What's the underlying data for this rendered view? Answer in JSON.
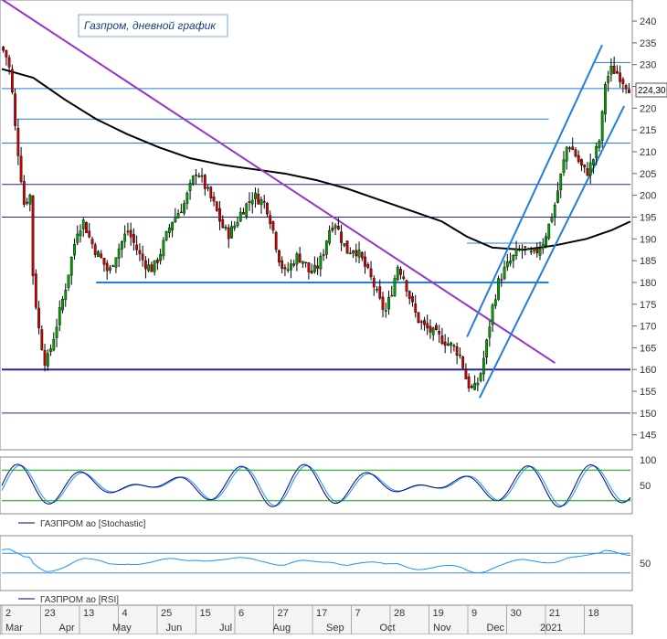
{
  "chart_data": [
    {
      "type": "candlestick",
      "title": "Газпром, дневной график",
      "y_ticks": [
        145,
        150,
        155,
        160,
        165,
        170,
        175,
        180,
        185,
        190,
        195,
        200,
        205,
        210,
        215,
        220,
        225,
        230,
        235,
        240
      ],
      "ylim": [
        142,
        244
      ],
      "last_price_label": "224,30",
      "x_tick_labels": [
        "2",
        "23",
        "13",
        "4",
        "25",
        "15",
        "6",
        "27",
        "17",
        "7",
        "28",
        "19",
        "9",
        "30",
        "21",
        "18"
      ],
      "month_labels": [
        "Mar",
        "Apr",
        "May",
        "Jun",
        "Jul",
        "Aug",
        "Sep",
        "Oct",
        "Nov",
        "Dec",
        "2021"
      ],
      "horizontal_levels": [
        {
          "price": 224.5,
          "from": 0,
          "to": 1
        },
        {
          "price": 217.5,
          "from": 0.02,
          "to": 0.87
        },
        {
          "price": 212.0,
          "from": 0,
          "to": 1
        },
        {
          "price": 202.5,
          "from": 0,
          "to": 1
        },
        {
          "price": 195.0,
          "from": 0,
          "to": 1
        },
        {
          "price": 180.0,
          "from": 0.15,
          "to": 0.87
        },
        {
          "price": 189.0,
          "from": 0.74,
          "to": 0.86
        },
        {
          "price": 160.0,
          "from": 0,
          "to": 1
        },
        {
          "price": 150.0,
          "from": 0,
          "to": 1
        },
        {
          "price": 230.5,
          "from": 0.94,
          "to": 1
        }
      ],
      "trend_lines": [
        {
          "name": "downtrend",
          "from": [
            0.0,
            245.0
          ],
          "to": [
            0.88,
            161.5
          ]
        },
        {
          "name": "channel-upper",
          "from": [
            0.74,
            167.5
          ],
          "to": [
            0.955,
            234.5
          ]
        },
        {
          "name": "channel-lower",
          "from": [
            0.76,
            153.5
          ],
          "to": [
            0.99,
            220.5
          ]
        },
        {
          "name": "ma-200",
          "points": [
            [
              0.0,
              229
            ],
            [
              0.05,
              227
            ],
            [
              0.1,
              222
            ],
            [
              0.15,
              217.5
            ],
            [
              0.2,
              214
            ],
            [
              0.25,
              211
            ],
            [
              0.3,
              208.5
            ],
            [
              0.35,
              207
            ],
            [
              0.4,
              206
            ],
            [
              0.45,
              205
            ],
            [
              0.5,
              203.5
            ],
            [
              0.55,
              201.5
            ],
            [
              0.6,
              199
            ],
            [
              0.65,
              196.5
            ],
            [
              0.7,
              194
            ],
            [
              0.74,
              190.5
            ],
            [
              0.78,
              188
            ],
            [
              0.83,
              187.5
            ],
            [
              0.88,
              188.5
            ],
            [
              0.93,
              190
            ],
            [
              0.97,
              192
            ],
            [
              1.0,
              194
            ]
          ]
        }
      ],
      "price_path": [
        [
          0.0,
          234
        ],
        [
          0.01,
          231
        ],
        [
          0.015,
          226
        ],
        [
          0.02,
          217
        ],
        [
          0.03,
          205
        ],
        [
          0.035,
          198
        ],
        [
          0.045,
          200
        ],
        [
          0.05,
          180
        ],
        [
          0.06,
          168
        ],
        [
          0.07,
          161
        ],
        [
          0.08,
          166
        ],
        [
          0.09,
          172
        ],
        [
          0.1,
          178
        ],
        [
          0.11,
          185
        ],
        [
          0.12,
          192
        ],
        [
          0.13,
          194
        ],
        [
          0.14,
          190
        ],
        [
          0.15,
          187
        ],
        [
          0.16,
          185
        ],
        [
          0.17,
          182
        ],
        [
          0.18,
          186
        ],
        [
          0.19,
          189
        ],
        [
          0.2,
          192
        ],
        [
          0.21,
          189
        ],
        [
          0.22,
          186
        ],
        [
          0.23,
          184
        ],
        [
          0.24,
          183
        ],
        [
          0.25,
          186
        ],
        [
          0.26,
          190
        ],
        [
          0.27,
          194
        ],
        [
          0.28,
          196
        ],
        [
          0.29,
          198
        ],
        [
          0.3,
          202
        ],
        [
          0.31,
          206
        ],
        [
          0.32,
          203
        ],
        [
          0.33,
          200
        ],
        [
          0.34,
          197
        ],
        [
          0.35,
          193
        ],
        [
          0.36,
          191
        ],
        [
          0.37,
          193
        ],
        [
          0.38,
          196
        ],
        [
          0.39,
          198
        ],
        [
          0.4,
          200
        ],
        [
          0.41,
          199
        ],
        [
          0.42,
          198
        ],
        [
          0.43,
          193
        ],
        [
          0.44,
          186
        ],
        [
          0.45,
          182
        ],
        [
          0.46,
          184
        ],
        [
          0.47,
          186
        ],
        [
          0.48,
          185
        ],
        [
          0.49,
          182
        ],
        [
          0.5,
          183
        ],
        [
          0.51,
          186
        ],
        [
          0.52,
          192
        ],
        [
          0.53,
          194
        ],
        [
          0.54,
          190
        ],
        [
          0.55,
          187
        ],
        [
          0.56,
          188
        ],
        [
          0.57,
          186
        ],
        [
          0.58,
          183
        ],
        [
          0.59,
          180
        ],
        [
          0.6,
          176
        ],
        [
          0.61,
          173
        ],
        [
          0.62,
          178
        ],
        [
          0.63,
          184
        ],
        [
          0.64,
          181
        ],
        [
          0.65,
          176
        ],
        [
          0.66,
          172
        ],
        [
          0.67,
          170
        ],
        [
          0.68,
          169
        ],
        [
          0.69,
          168
        ],
        [
          0.7,
          167
        ],
        [
          0.71,
          166
        ],
        [
          0.72,
          165
        ],
        [
          0.73,
          163
        ],
        [
          0.74,
          157
        ],
        [
          0.75,
          155
        ],
        [
          0.76,
          158
        ],
        [
          0.77,
          165
        ],
        [
          0.78,
          174
        ],
        [
          0.79,
          180
        ],
        [
          0.8,
          183
        ],
        [
          0.81,
          185
        ],
        [
          0.82,
          187
        ],
        [
          0.83,
          188
        ],
        [
          0.84,
          186
        ],
        [
          0.85,
          187
        ],
        [
          0.86,
          189
        ],
        [
          0.87,
          193
        ],
        [
          0.88,
          198
        ],
        [
          0.89,
          205
        ],
        [
          0.9,
          212
        ],
        [
          0.91,
          210
        ],
        [
          0.92,
          207
        ],
        [
          0.93,
          205
        ],
        [
          0.94,
          208
        ],
        [
          0.95,
          212
        ],
        [
          0.955,
          218
        ],
        [
          0.96,
          226
        ],
        [
          0.97,
          229
        ],
        [
          0.98,
          228
        ],
        [
          0.99,
          226
        ],
        [
          1.0,
          224.3
        ]
      ]
    },
    {
      "type": "line",
      "series": [
        {
          "name": "ГАЗПРОМ ао [Stochastic]"
        }
      ],
      "y_ticks": [
        50,
        100
      ],
      "levels": [
        80,
        20
      ]
    },
    {
      "type": "line",
      "series": [
        {
          "name": "ГАЗПРОМ ао [RSI]"
        }
      ],
      "y_ticks": [
        50
      ],
      "levels": [
        70,
        30
      ]
    }
  ],
  "colors": {
    "up": "#00a000",
    "down": "#cc0000",
    "ma": "#000000",
    "trend": "#9933cc",
    "channel": "#1e7fe0",
    "level": "#1e7fe0",
    "level_dark": "#2222aa",
    "osc_k": "#000080",
    "osc_d": "#1e90ff",
    "osc_band": "#00aa00"
  }
}
